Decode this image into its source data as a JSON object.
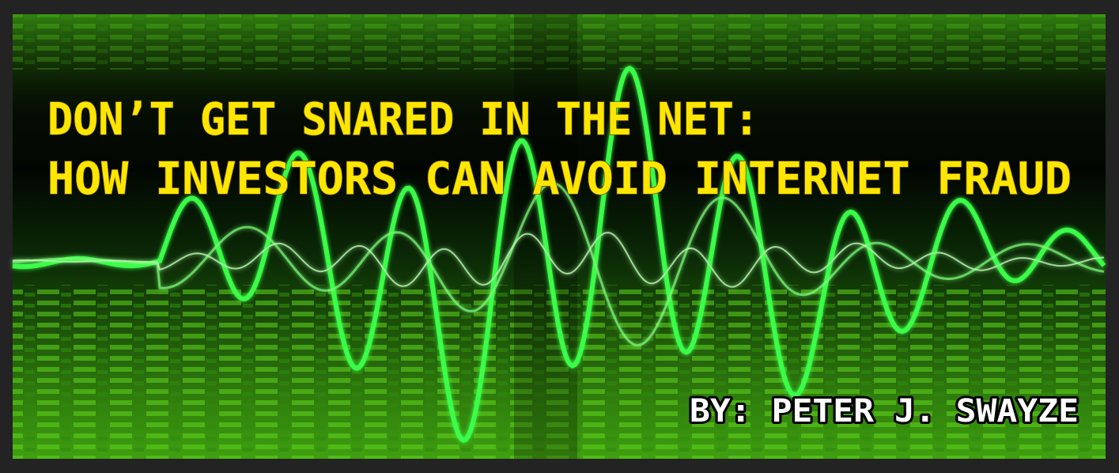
{
  "title": {
    "line1": "DON’T GET SNARED IN THE NET:",
    "line2": "HOW INVESTORS CAN AVOID INTERNET FRAUD"
  },
  "byline": "BY: PETER J. SWAYZE"
}
